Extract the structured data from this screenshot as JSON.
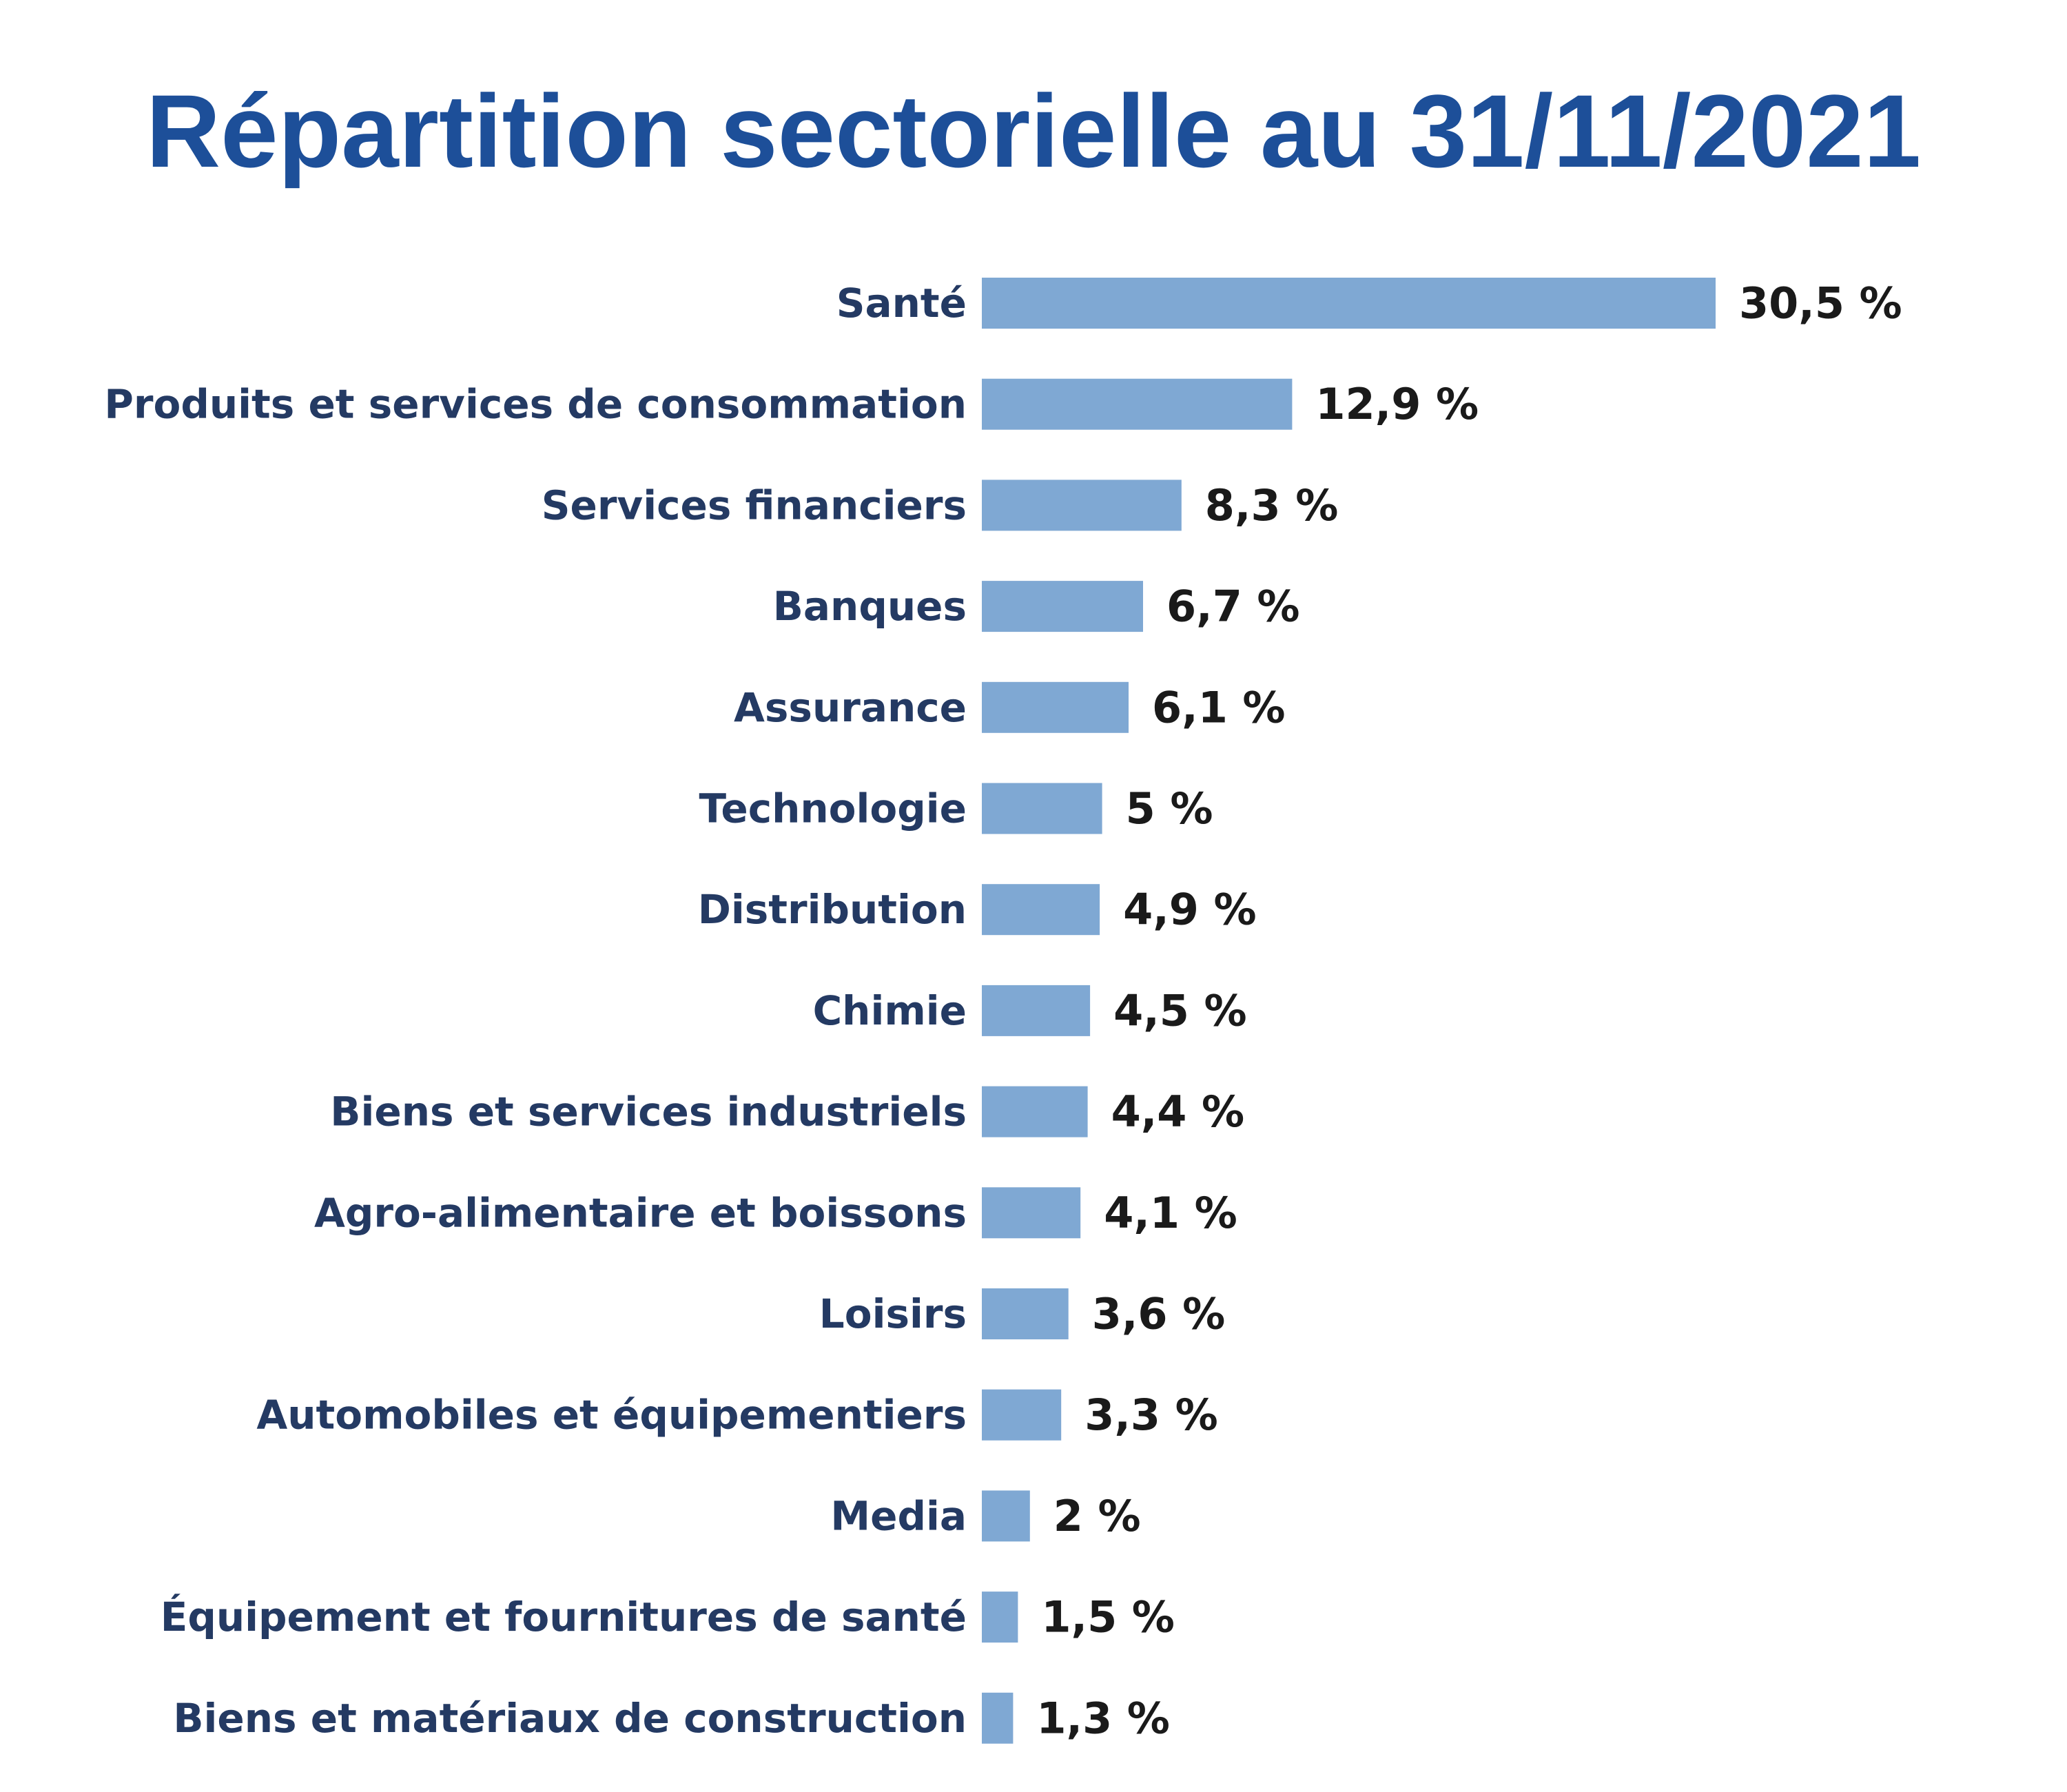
{
  "colors": {
    "title": "#1d4f99",
    "bar": "#7fa8d3",
    "category_text": "#243a63",
    "value_text": "#1a1a1a",
    "background": "#ffffff"
  },
  "chart_data": {
    "type": "bar",
    "orientation": "horizontal",
    "title": "Répartition sectorielle au 31/11/2021",
    "xlabel": "",
    "ylabel": "",
    "grid": false,
    "legend": "none",
    "xlim": [
      0,
      30.5
    ],
    "unit": "%",
    "categories": [
      "Santé",
      "Produits et services de consommation",
      "Services financiers",
      "Banques",
      "Assurance",
      "Technologie",
      "Distribution",
      "Chimie",
      "Biens et services industriels",
      "Agro-alimentaire et boissons",
      "Loisirs",
      "Automobiles et équipementiers",
      "Media",
      "Équipement et fournitures de santé",
      "Biens et matériaux de construction"
    ],
    "values": [
      30.5,
      12.9,
      8.3,
      6.7,
      6.1,
      5,
      4.9,
      4.5,
      4.4,
      4.1,
      3.6,
      3.3,
      2,
      1.5,
      1.3
    ],
    "value_labels": [
      "30,5 %",
      "12,9 %",
      "8,3 %",
      "6,7 %",
      "6,1 %",
      "5 %",
      "4,9 %",
      "4,5 %",
      "4,4 %",
      "4,1 %",
      "3,6 %",
      "3,3 %",
      "2 %",
      "1,5 %",
      "1,3 %"
    ]
  }
}
